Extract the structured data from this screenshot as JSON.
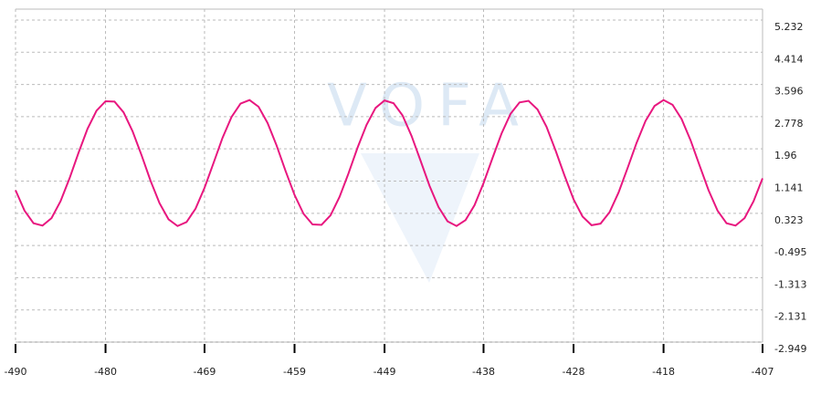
{
  "chart_data": {
    "type": "line",
    "watermark": "VOFA",
    "x": [
      -490,
      -489,
      -488,
      -487,
      -486,
      -485,
      -484,
      -483,
      -482,
      -481,
      -480,
      -479,
      -478,
      -477,
      -476,
      -475,
      -474,
      -473,
      -472,
      -471,
      -470,
      -469,
      -468,
      -467,
      -466,
      -465,
      -464,
      -463,
      -462,
      -461,
      -460,
      -459,
      -458,
      -457,
      -456,
      -455,
      -454,
      -453,
      -452,
      -451,
      -450,
      -449,
      -448,
      -447,
      -446,
      -445,
      -444,
      -443,
      -442,
      -441,
      -440,
      -439,
      -438,
      -437,
      -436,
      -435,
      -434,
      -433,
      -432,
      -431,
      -430,
      -429,
      -428,
      -427,
      -426,
      -425,
      -424,
      -423,
      -422,
      -421,
      -420,
      -419,
      -418,
      -417,
      -416,
      -415,
      -414,
      -413,
      -412,
      -411,
      -410,
      -409,
      -408,
      -407
    ],
    "series": [
      {
        "color": "#e8177f",
        "values": [
          0.91,
          0.39,
          0.07,
          0.01,
          0.2,
          0.63,
          1.21,
          1.86,
          2.47,
          2.93,
          3.17,
          3.16,
          2.89,
          2.41,
          1.8,
          1.15,
          0.58,
          0.17,
          0.0,
          0.1,
          0.44,
          0.97,
          1.6,
          2.24,
          2.77,
          3.11,
          3.2,
          3.03,
          2.62,
          2.05,
          1.4,
          0.79,
          0.31,
          0.04,
          0.03,
          0.27,
          0.74,
          1.34,
          1.99,
          2.57,
          3.0,
          3.19,
          3.12,
          2.81,
          2.29,
          1.66,
          1.02,
          0.48,
          0.12,
          0.0,
          0.15,
          0.53,
          1.09,
          1.73,
          2.35,
          2.85,
          3.14,
          3.18,
          2.96,
          2.52,
          1.92,
          1.28,
          0.68,
          0.24,
          0.02,
          0.06,
          0.35,
          0.85,
          1.47,
          2.11,
          2.67,
          3.05,
          3.2,
          3.08,
          2.72,
          2.18,
          1.54,
          0.91,
          0.39,
          0.07,
          0.01,
          0.2,
          0.63,
          1.21
        ]
      }
    ],
    "xlim": [
      -490,
      -407
    ],
    "xticks": [
      -490,
      -480,
      -469,
      -459,
      -449,
      -438,
      -428,
      -418,
      -407
    ],
    "ylim": [
      -2.949,
      5.51
    ],
    "yticks": [
      5.232,
      4.414,
      3.596,
      2.778,
      1.96,
      1.141,
      0.323,
      -0.495,
      -1.313,
      -2.131,
      -2.949
    ],
    "grid": true
  }
}
